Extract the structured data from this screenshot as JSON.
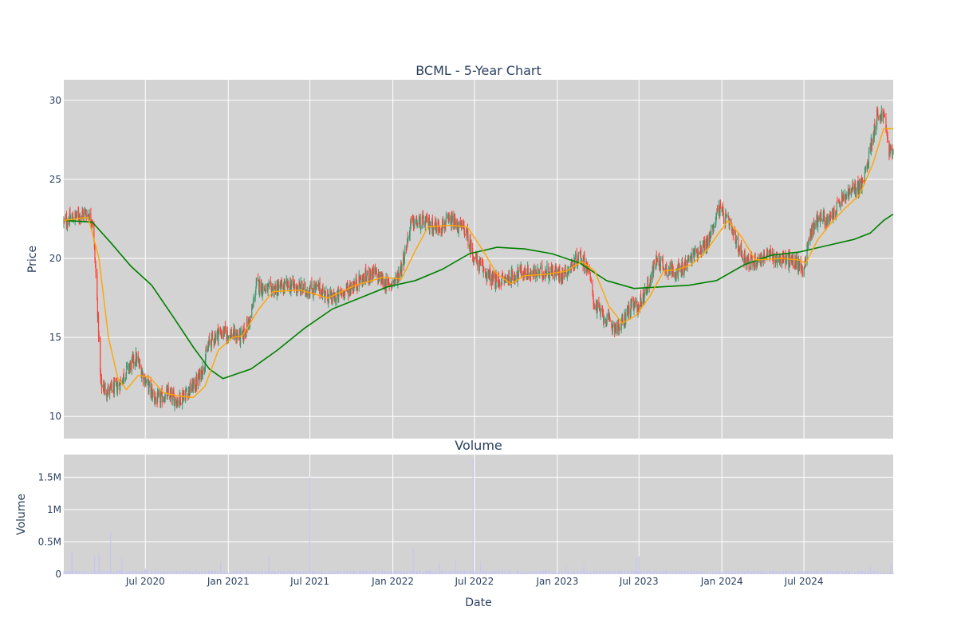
{
  "chart_data": [
    {
      "type": "candlestick",
      "title": "BCML - 5-Year Chart",
      "ylabel": "Price",
      "ylim": [
        8.6,
        31.3
      ],
      "yticks": [
        10,
        15,
        20,
        25,
        30
      ],
      "grid": true,
      "background": "#d3d3d3",
      "colors": {
        "up": "#3d9970",
        "down": "#ff4136",
        "sma_short": "#ffa500",
        "sma_long": "#008000"
      },
      "x_range": [
        "2020-01-02",
        "2025-01-15"
      ],
      "price_path": [
        [
          "2020-01-02",
          22.3
        ],
        [
          "2020-01-25",
          22.6
        ],
        [
          "2020-02-20",
          22.9
        ],
        [
          "2020-03-06",
          22.4
        ],
        [
          "2020-03-15",
          18.0
        ],
        [
          "2020-03-24",
          12.0
        ],
        [
          "2020-04-10",
          11.6
        ],
        [
          "2020-05-01",
          11.9
        ],
        [
          "2020-05-20",
          12.9
        ],
        [
          "2020-06-10",
          13.7
        ],
        [
          "2020-07-01",
          12.3
        ],
        [
          "2020-07-25",
          11.0
        ],
        [
          "2020-08-20",
          11.4
        ],
        [
          "2020-09-10",
          11.0
        ],
        [
          "2020-10-01",
          11.6
        ],
        [
          "2020-10-20",
          12.0
        ],
        [
          "2020-11-05",
          13.0
        ],
        [
          "2020-11-20",
          14.7
        ],
        [
          "2020-12-10",
          15.3
        ],
        [
          "2021-01-10",
          15.2
        ],
        [
          "2021-02-01",
          15.0
        ],
        [
          "2021-02-20",
          16.3
        ],
        [
          "2021-03-05",
          18.4
        ],
        [
          "2021-03-25",
          18.0
        ],
        [
          "2021-04-20",
          18.1
        ],
        [
          "2021-05-20",
          18.3
        ],
        [
          "2021-06-20",
          18.0
        ],
        [
          "2021-07-20",
          18.1
        ],
        [
          "2021-08-20",
          17.4
        ],
        [
          "2021-09-20",
          18.0
        ],
        [
          "2021-10-20",
          18.6
        ],
        [
          "2021-11-20",
          19.1
        ],
        [
          "2021-12-20",
          18.3
        ],
        [
          "2022-01-10",
          18.7
        ],
        [
          "2022-01-25",
          20.0
        ],
        [
          "2022-02-10",
          22.2
        ],
        [
          "2022-03-10",
          22.3
        ],
        [
          "2022-04-10",
          22.0
        ],
        [
          "2022-05-10",
          22.3
        ],
        [
          "2022-06-10",
          21.8
        ],
        [
          "2022-07-01",
          20.0
        ],
        [
          "2022-07-20",
          19.3
        ],
        [
          "2022-08-15",
          18.5
        ],
        [
          "2022-09-10",
          18.7
        ],
        [
          "2022-10-10",
          19.1
        ],
        [
          "2022-11-10",
          19.0
        ],
        [
          "2022-12-10",
          19.2
        ],
        [
          "2023-01-10",
          19.0
        ],
        [
          "2023-02-01",
          19.5
        ],
        [
          "2023-02-20",
          20.2
        ],
        [
          "2023-03-10",
          19.4
        ],
        [
          "2023-03-25",
          17.0
        ],
        [
          "2023-04-15",
          16.3
        ],
        [
          "2023-05-01",
          15.8
        ],
        [
          "2023-05-20",
          15.6
        ],
        [
          "2023-06-10",
          16.9
        ],
        [
          "2023-07-01",
          17.0
        ],
        [
          "2023-07-25",
          18.6
        ],
        [
          "2023-08-10",
          20.0
        ],
        [
          "2023-09-01",
          19.3
        ],
        [
          "2023-10-01",
          19.2
        ],
        [
          "2023-11-01",
          20.3
        ],
        [
          "2023-12-01",
          21.0
        ],
        [
          "2023-12-25",
          23.2
        ],
        [
          "2024-01-20",
          22.0
        ],
        [
          "2024-02-10",
          20.5
        ],
        [
          "2024-03-01",
          19.7
        ],
        [
          "2024-04-10",
          20.2
        ],
        [
          "2024-05-10",
          20.0
        ],
        [
          "2024-06-10",
          19.8
        ],
        [
          "2024-06-30",
          19.3
        ],
        [
          "2024-07-15",
          21.6
        ],
        [
          "2024-08-05",
          22.7
        ],
        [
          "2024-08-25",
          22.3
        ],
        [
          "2024-09-20",
          23.6
        ],
        [
          "2024-10-20",
          24.4
        ],
        [
          "2024-11-10",
          24.7
        ],
        [
          "2024-11-25",
          27.0
        ],
        [
          "2024-12-10",
          29.0
        ],
        [
          "2024-12-25",
          29.1
        ],
        [
          "2025-01-05",
          27.0
        ],
        [
          "2025-01-15",
          26.5
        ]
      ],
      "sma_short_path": [
        [
          "2020-01-02",
          22.4
        ],
        [
          "2020-02-25",
          22.6
        ],
        [
          "2020-03-20",
          20.0
        ],
        [
          "2020-04-10",
          15.0
        ],
        [
          "2020-05-01",
          12.4
        ],
        [
          "2020-05-20",
          11.7
        ],
        [
          "2020-06-15",
          12.6
        ],
        [
          "2020-07-10",
          12.5
        ],
        [
          "2020-08-10",
          11.5
        ],
        [
          "2020-09-15",
          11.3
        ],
        [
          "2020-10-15",
          11.2
        ],
        [
          "2020-11-10",
          11.9
        ],
        [
          "2020-12-10",
          14.2
        ],
        [
          "2021-01-10",
          15.0
        ],
        [
          "2021-02-01",
          15.1
        ],
        [
          "2021-03-10",
          16.8
        ],
        [
          "2021-04-10",
          17.9
        ],
        [
          "2021-06-10",
          18.0
        ],
        [
          "2021-08-10",
          17.5
        ],
        [
          "2021-10-10",
          18.3
        ],
        [
          "2021-12-10",
          18.8
        ],
        [
          "2022-01-20",
          18.7
        ],
        [
          "2022-02-20",
          20.5
        ],
        [
          "2022-03-20",
          22.0
        ],
        [
          "2022-05-10",
          22.1
        ],
        [
          "2022-06-15",
          22.0
        ],
        [
          "2022-07-20",
          20.5
        ],
        [
          "2022-08-20",
          19.0
        ],
        [
          "2022-09-20",
          18.4
        ],
        [
          "2022-10-20",
          18.9
        ],
        [
          "2022-12-10",
          19.0
        ],
        [
          "2023-01-20",
          19.2
        ],
        [
          "2023-02-25",
          19.8
        ],
        [
          "2023-03-25",
          19.2
        ],
        [
          "2023-04-25",
          17.0
        ],
        [
          "2023-05-25",
          15.9
        ],
        [
          "2023-06-25",
          16.4
        ],
        [
          "2023-07-25",
          17.6
        ],
        [
          "2023-08-25",
          19.2
        ],
        [
          "2023-09-25",
          19.3
        ],
        [
          "2023-10-25",
          19.6
        ],
        [
          "2023-11-25",
          20.4
        ],
        [
          "2023-12-25",
          21.6
        ],
        [
          "2024-01-15",
          22.4
        ],
        [
          "2024-02-15",
          21.3
        ],
        [
          "2024-03-15",
          19.9
        ],
        [
          "2024-05-15",
          20.0
        ],
        [
          "2024-06-20",
          19.9
        ],
        [
          "2024-07-05",
          19.7
        ],
        [
          "2024-08-01",
          21.2
        ],
        [
          "2024-09-01",
          22.3
        ],
        [
          "2024-10-01",
          23.2
        ],
        [
          "2024-11-01",
          24.0
        ],
        [
          "2024-12-01",
          26.0
        ],
        [
          "2024-12-25",
          28.2
        ],
        [
          "2025-01-15",
          28.2
        ]
      ],
      "sma_long_path": [
        [
          "2020-01-02",
          22.4
        ],
        [
          "2020-03-05",
          22.3
        ],
        [
          "2020-04-15",
          21.0
        ],
        [
          "2020-05-30",
          19.5
        ],
        [
          "2020-07-15",
          18.3
        ],
        [
          "2020-09-01",
          16.3
        ],
        [
          "2020-10-15",
          14.4
        ],
        [
          "2020-11-20",
          13.0
        ],
        [
          "2020-12-20",
          12.4
        ],
        [
          "2021-01-20",
          12.7
        ],
        [
          "2021-02-20",
          13.0
        ],
        [
          "2021-04-20",
          14.2
        ],
        [
          "2021-06-20",
          15.6
        ],
        [
          "2021-08-20",
          16.8
        ],
        [
          "2021-10-20",
          17.5
        ],
        [
          "2021-12-20",
          18.2
        ],
        [
          "2022-02-20",
          18.6
        ],
        [
          "2022-04-20",
          19.3
        ],
        [
          "2022-06-20",
          20.3
        ],
        [
          "2022-08-20",
          20.7
        ],
        [
          "2022-10-20",
          20.6
        ],
        [
          "2022-12-20",
          20.3
        ],
        [
          "2023-02-20",
          19.7
        ],
        [
          "2023-04-20",
          18.6
        ],
        [
          "2023-06-20",
          18.1
        ],
        [
          "2023-08-20",
          18.2
        ],
        [
          "2023-10-20",
          18.3
        ],
        [
          "2023-12-20",
          18.6
        ],
        [
          "2024-02-20",
          19.6
        ],
        [
          "2024-04-20",
          20.2
        ],
        [
          "2024-06-20",
          20.4
        ],
        [
          "2024-08-20",
          20.8
        ],
        [
          "2024-10-20",
          21.2
        ],
        [
          "2024-11-25",
          21.6
        ],
        [
          "2024-12-25",
          22.4
        ],
        [
          "2025-01-15",
          22.8
        ]
      ]
    },
    {
      "type": "bar",
      "title": "Volume",
      "xlabel": "Date",
      "ylabel": "Volume",
      "ylim": [
        0,
        1850000
      ],
      "yticks": [
        0,
        500000,
        1000000,
        1500000
      ],
      "ytick_labels": [
        "0",
        "0.5M",
        "1M",
        "1.5M"
      ],
      "xticks": [
        "2020-07-01",
        "2021-01-01",
        "2021-07-01",
        "2022-01-01",
        "2022-07-01",
        "2023-01-01",
        "2023-07-01",
        "2024-01-01",
        "2024-07-01"
      ],
      "xtick_labels": [
        "Jul 2020",
        "Jan 2021",
        "Jul 2021",
        "Jan 2022",
        "Jul 2022",
        "Jan 2023",
        "Jul 2023",
        "Jan 2024",
        "Jul 2024"
      ],
      "grid": true,
      "background": "#d3d3d3",
      "bar_color": "#c6c6f0",
      "baseline_volume": 40000,
      "spikes": [
        [
          "2020-01-20",
          330000
        ],
        [
          "2020-03-10",
          280000
        ],
        [
          "2020-03-20",
          320000
        ],
        [
          "2020-04-15",
          650000
        ],
        [
          "2020-05-10",
          250000
        ],
        [
          "2020-07-01",
          90000
        ],
        [
          "2020-12-15",
          200000
        ],
        [
          "2021-04-01",
          280000
        ],
        [
          "2021-07-01",
          1500000
        ],
        [
          "2022-02-15",
          400000
        ],
        [
          "2022-04-15",
          170000
        ],
        [
          "2022-05-20",
          200000
        ],
        [
          "2022-06-28",
          1800000
        ],
        [
          "2022-07-15",
          200000
        ],
        [
          "2023-01-20",
          120000
        ],
        [
          "2023-03-01",
          130000
        ],
        [
          "2023-06-25",
          250000
        ],
        [
          "2023-07-01",
          280000
        ],
        [
          "2024-11-25",
          120000
        ],
        [
          "2025-01-10",
          180000
        ]
      ]
    }
  ]
}
